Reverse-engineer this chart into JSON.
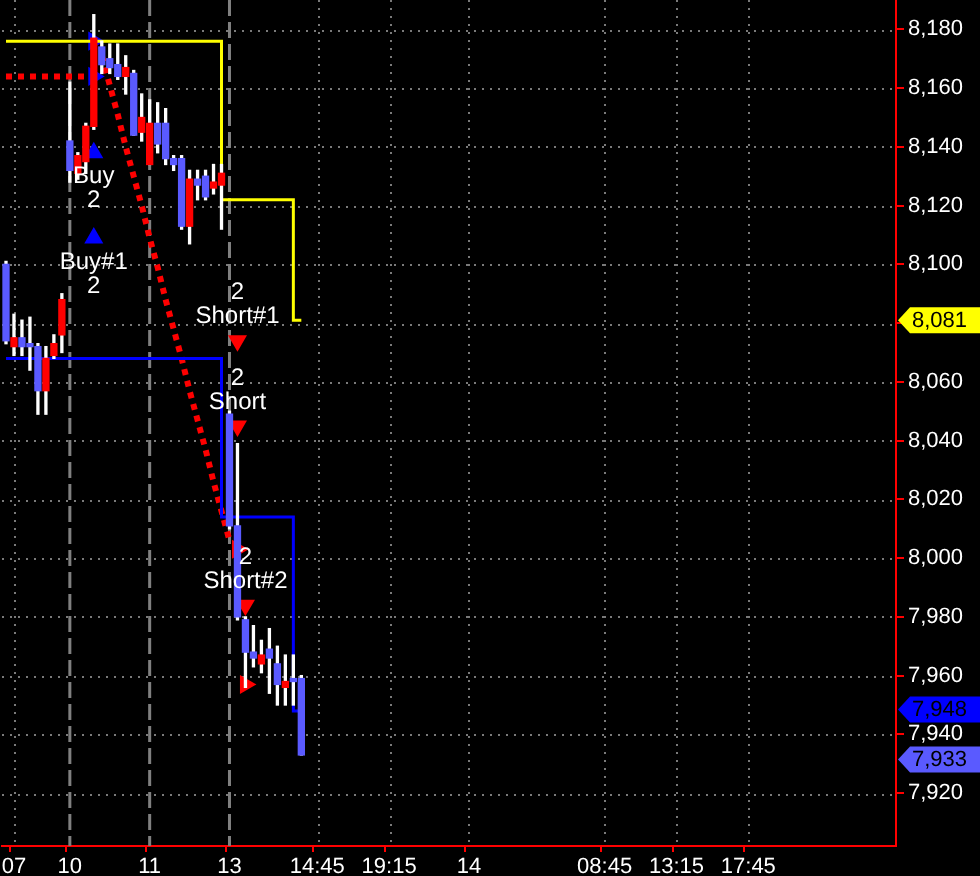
{
  "chart_data": {
    "type": "candlestick",
    "categories": [
      null,
      "07",
      null,
      null,
      null,
      null,
      null,
      null,
      "10",
      null,
      null,
      null,
      null,
      null,
      null,
      null,
      null,
      null,
      "11",
      null,
      null,
      null,
      null,
      null,
      null,
      null,
      null,
      null,
      "13",
      null,
      null,
      null,
      null,
      null,
      null,
      null,
      null,
      null,
      null,
      "14:45",
      null,
      null,
      null,
      null,
      null,
      null,
      null,
      null,
      "19:15",
      null,
      null,
      null,
      null,
      null,
      null,
      null,
      null,
      null,
      "14",
      null,
      null,
      null,
      null,
      null,
      null,
      null,
      null,
      null,
      null,
      null,
      null,
      null,
      null,
      null,
      null,
      "08:45",
      null,
      null,
      null,
      null,
      null,
      null,
      null,
      null,
      "13:15",
      null,
      null,
      null,
      null,
      null,
      null,
      null,
      null,
      "17:45",
      null,
      null,
      null,
      null,
      null,
      null,
      null,
      null,
      null,
      null,
      null,
      null,
      null,
      null,
      null,
      null,
      null,
      null
    ],
    "ohlc": [
      [
        8100,
        8101,
        8073,
        8074
      ],
      [
        8072,
        8083,
        8069,
        8075
      ],
      [
        8075,
        8081,
        8069,
        8072
      ],
      [
        8073,
        8082,
        8064,
        8072
      ],
      [
        8072,
        8073,
        8049,
        8057
      ],
      [
        8057,
        8072,
        8049,
        8068
      ],
      [
        8069,
        8076,
        8068,
        8073
      ],
      [
        8076,
        8090,
        8070,
        8088
      ],
      [
        8142,
        8162,
        8128,
        8132
      ],
      [
        8131,
        8138,
        8129,
        8137
      ],
      [
        8135,
        8148,
        8131,
        8147
      ],
      [
        8147,
        8185,
        8146,
        8177
      ],
      [
        8174,
        8176,
        8165,
        8168
      ],
      [
        8170,
        8175,
        8165,
        8167
      ],
      [
        8168,
        8175,
        8163,
        8164
      ],
      [
        8164,
        8171,
        8158,
        8167
      ],
      [
        8165,
        8166,
        8144,
        8144
      ],
      [
        8145,
        8158,
        8142,
        8150
      ],
      [
        8134,
        8156,
        8134,
        8148
      ],
      [
        8148,
        8155,
        8138,
        8141
      ],
      [
        8148,
        8153,
        8134,
        8136
      ],
      [
        8136,
        8137,
        8132,
        8134
      ],
      [
        8136,
        8137,
        8112,
        8113
      ],
      [
        8113,
        8132,
        8107,
        8129
      ],
      [
        8129,
        8132,
        8122,
        8127
      ],
      [
        8130,
        8132,
        8122,
        8123
      ],
      [
        8126,
        8134,
        8124,
        8128
      ],
      [
        8127,
        8134,
        8112,
        8131
      ],
      [
        8049,
        8050,
        8010,
        8011
      ],
      [
        8011,
        8039,
        7979,
        7980
      ],
      [
        7979,
        7980,
        7956,
        7968
      ],
      [
        7968,
        7977,
        7963,
        7966
      ],
      [
        7964,
        7972,
        7961,
        7967
      ],
      [
        7969,
        7976,
        7954,
        7966
      ],
      [
        7964,
        7970,
        7950,
        7957
      ],
      [
        7956,
        7967,
        7950,
        7958
      ],
      [
        7959,
        7967,
        7950,
        7958
      ],
      [
        7959,
        7960,
        7933,
        7933
      ],
      null,
      null,
      null,
      null,
      null,
      null,
      null,
      null,
      null,
      null,
      null,
      null,
      null,
      null,
      null,
      null,
      null,
      null,
      null,
      null,
      null,
      null,
      null,
      null,
      null,
      null,
      null,
      null,
      null,
      null,
      null,
      null,
      null,
      null,
      null,
      null,
      null,
      null,
      null,
      null,
      null,
      null,
      null,
      null,
      null,
      null,
      null,
      null,
      null,
      null,
      null,
      null,
      null,
      null,
      null,
      null,
      null,
      null,
      null,
      null,
      null,
      null,
      null,
      null,
      null,
      null,
      null,
      null,
      null,
      null,
      null,
      null,
      null,
      null
    ],
    "colors": [
      "#5a5aff",
      "#ff0000",
      "#5a5aff",
      "#5a5aff",
      "#5a5aff",
      "#ff0000",
      "#ff0000",
      "#ff0000",
      "#5a5aff",
      "#ff0000",
      "#ff0000",
      "#ff0000",
      "#5a5aff",
      "#5a5aff",
      "#5a5aff",
      "#ff0000",
      "#5a5aff",
      "#ff0000",
      "#ff0000",
      "#5a5aff",
      "#5a5aff",
      "#5a5aff",
      "#5a5aff",
      "#ff0000",
      "#5a5aff",
      "#5a5aff",
      "#ff0000",
      "#ff0000",
      "#5a5aff",
      "#5a5aff",
      "#5a5aff",
      "#5a5aff",
      "#ff0000",
      "#5a5aff",
      "#5a5aff",
      "#ff0000",
      "#5a5aff",
      "#5a5aff",
      null,
      null,
      null,
      null,
      null,
      null,
      null,
      null,
      null,
      null,
      null,
      null,
      null,
      null,
      null,
      null,
      null,
      null,
      null,
      null,
      null,
      null,
      null,
      null,
      null,
      null,
      null,
      null,
      null,
      null,
      null,
      null,
      null,
      null,
      null,
      null,
      null,
      null,
      null,
      null,
      null,
      null,
      null,
      null,
      null,
      null,
      null,
      null,
      null,
      null,
      null,
      null,
      null,
      null,
      null,
      null,
      null,
      null,
      null,
      null,
      null,
      null,
      null,
      null,
      null,
      null,
      null,
      null,
      null,
      null,
      null,
      null,
      null,
      null
    ],
    "series": [
      {
        "type": "step",
        "color": "#ffff00",
        "values": [
          8176,
          8176,
          8176,
          8176,
          8176,
          8176,
          8176,
          8176,
          8176,
          8176,
          8176,
          8176,
          8176,
          8176,
          8176,
          8176,
          8176,
          8176,
          8176,
          8176,
          8176,
          8176,
          8176,
          8176,
          8176,
          8176,
          8176,
          8176,
          8122,
          8122,
          8122,
          8122,
          8122,
          8122,
          8122,
          8122,
          8122,
          8081,
          null,
          null,
          null,
          null,
          null,
          null,
          null,
          null,
          null,
          null,
          null,
          null,
          null,
          null,
          null,
          null,
          null,
          null,
          null,
          null,
          null,
          null,
          null,
          null,
          null,
          null,
          null,
          null,
          null,
          null,
          null,
          null,
          null,
          null,
          null,
          null,
          null,
          null,
          null,
          null,
          null,
          null,
          null,
          null,
          null,
          null,
          null,
          null,
          null,
          null,
          null,
          null,
          null,
          null,
          null,
          null,
          null,
          null,
          null,
          null,
          null,
          null,
          null,
          null,
          null,
          null,
          null,
          null,
          null,
          null,
          null,
          null,
          null,
          null
        ]
      },
      {
        "type": "step",
        "color": "#0000ff",
        "values": [
          8068,
          8068,
          8068,
          8068,
          8068,
          8068,
          8068,
          8068,
          8068,
          8068,
          8068,
          8068,
          8068,
          8068,
          8068,
          8068,
          8068,
          8068,
          8068,
          8068,
          8068,
          8068,
          8068,
          8068,
          8068,
          8068,
          8068,
          8068,
          8014,
          8014,
          8014,
          8014,
          8014,
          8014,
          8014,
          8014,
          8014,
          7948,
          null,
          null,
          null,
          null,
          null,
          null,
          null,
          null,
          null,
          null,
          null,
          null,
          null,
          null,
          null,
          null,
          null,
          null,
          null,
          null,
          null,
          null,
          null,
          null,
          null,
          null,
          null,
          null,
          null,
          null,
          null,
          null,
          null,
          null,
          null,
          null,
          null,
          null,
          null,
          null,
          null,
          null,
          null,
          null,
          null,
          null,
          null,
          null,
          null,
          null,
          null,
          null,
          null,
          null,
          null,
          null,
          null,
          null,
          null,
          null,
          null,
          null,
          null,
          null,
          null,
          null,
          null,
          null,
          null,
          null,
          null,
          null,
          null,
          null
        ]
      },
      {
        "type": "line",
        "color": "#ff0000",
        "line_style": "dotted",
        "values": [
          8164,
          8164,
          8164,
          8164,
          8164,
          8164,
          8164,
          8164,
          8164,
          8164,
          8164,
          null,
          null,
          null,
          null,
          null,
          null,
          null,
          null,
          null,
          null,
          null,
          null,
          null,
          null,
          null,
          null,
          null,
          null,
          null,
          null,
          null,
          null,
          null,
          null,
          null,
          null,
          null,
          null,
          null,
          null,
          null,
          null,
          null,
          null,
          null,
          null,
          null,
          null,
          null,
          null,
          null,
          null,
          null,
          null,
          null,
          null,
          null,
          null,
          null,
          null,
          null,
          null,
          null,
          null,
          null,
          null,
          null,
          null,
          null,
          null,
          null,
          null,
          null,
          null,
          null,
          null,
          null,
          null,
          null,
          null,
          null,
          null,
          null,
          null,
          null,
          null,
          null,
          null,
          null,
          null,
          null,
          null,
          null,
          null,
          null,
          null,
          null,
          null,
          null,
          null,
          null,
          null,
          null,
          null,
          null,
          null,
          null,
          null,
          null,
          null,
          null
        ]
      },
      {
        "type": "line",
        "color": "#ff0000",
        "line_style": "dotted",
        "values": [
          null,
          null,
          null,
          null,
          null,
          null,
          null,
          null,
          null,
          null,
          null,
          null,
          8171,
          8161,
          8151,
          8140,
          8130,
          8120,
          8109,
          8099,
          8088,
          8078,
          8068,
          8057,
          8047,
          8037,
          8026,
          8016,
          8006,
          null,
          null,
          null,
          null,
          null,
          null,
          null,
          null,
          null,
          null,
          null,
          null,
          null,
          null,
          null,
          null,
          null,
          null,
          null,
          null,
          null,
          null,
          null,
          null,
          null,
          null,
          null,
          null,
          null,
          null,
          null,
          null,
          null,
          null,
          null,
          null,
          null,
          null,
          null,
          null,
          null,
          null,
          null,
          null,
          null,
          null,
          null,
          null,
          null,
          null,
          null,
          null,
          null,
          null,
          null,
          null,
          null,
          null,
          null,
          null,
          null,
          null,
          null,
          null,
          null,
          null,
          null,
          null,
          null,
          null,
          null,
          null,
          null,
          null,
          null,
          null,
          null,
          null,
          null,
          null,
          null,
          null,
          null
        ]
      },
      {
        "type": "scatter",
        "name": "Buy 2",
        "color": "#0000ff",
        "marker": "triangle",
        "values": [
          null,
          null,
          null,
          null,
          null,
          null,
          null,
          null,
          null,
          null,
          null,
          8138,
          null,
          null,
          null,
          null,
          null,
          null,
          null,
          null,
          null,
          null,
          null,
          null,
          null,
          null,
          null,
          null,
          null,
          null,
          null,
          null,
          null,
          null,
          null,
          null,
          null,
          null,
          null,
          null,
          null,
          null,
          null,
          null,
          null,
          null,
          null,
          null,
          null,
          null,
          null,
          null,
          null,
          null,
          null,
          null,
          null,
          null,
          null,
          null,
          null,
          null,
          null,
          null,
          null,
          null,
          null,
          null,
          null,
          null,
          null,
          null,
          null,
          null,
          null,
          null,
          null,
          null,
          null,
          null,
          null,
          null,
          null,
          null,
          null,
          null,
          null,
          null,
          null,
          null,
          null,
          null,
          null,
          null,
          null,
          null,
          null,
          null,
          null,
          null,
          null,
          null,
          null,
          null,
          null,
          null,
          null,
          null,
          null,
          null,
          null,
          null
        ]
      },
      {
        "type": "scatter",
        "name": "Buy#1 2",
        "color": "#0000ff",
        "marker": "triangle",
        "values": [
          null,
          null,
          null,
          null,
          null,
          null,
          null,
          null,
          null,
          null,
          null,
          8109,
          null,
          null,
          null,
          null,
          null,
          null,
          null,
          null,
          null,
          null,
          null,
          null,
          null,
          null,
          null,
          null,
          null,
          null,
          null,
          null,
          null,
          null,
          null,
          null,
          null,
          null,
          null,
          null,
          null,
          null,
          null,
          null,
          null,
          null,
          null,
          null,
          null,
          null,
          null,
          null,
          null,
          null,
          null,
          null,
          null,
          null,
          null,
          null,
          null,
          null,
          null,
          null,
          null,
          null,
          null,
          null,
          null,
          null,
          null,
          null,
          null,
          null,
          null,
          null,
          null,
          null,
          null,
          null,
          null,
          null,
          null,
          null,
          null,
          null,
          null,
          null,
          null,
          null,
          null,
          null,
          null,
          null,
          null,
          null,
          null,
          null,
          null,
          null,
          null,
          null,
          null,
          null,
          null,
          null,
          null,
          null,
          null,
          null,
          null,
          null
        ]
      },
      {
        "type": "scatter",
        "name": "2 Short#1",
        "color": "#ff0000",
        "marker": "triangle",
        "values": [
          null,
          null,
          null,
          null,
          null,
          null,
          null,
          null,
          null,
          null,
          null,
          null,
          null,
          null,
          null,
          null,
          null,
          null,
          null,
          null,
          null,
          null,
          null,
          null,
          null,
          null,
          null,
          null,
          null,
          8074,
          null,
          null,
          null,
          null,
          null,
          null,
          null,
          null,
          null,
          null,
          null,
          null,
          null,
          null,
          null,
          null,
          null,
          null,
          null,
          null,
          null,
          null,
          null,
          null,
          null,
          null,
          null,
          null,
          null,
          null,
          null,
          null,
          null,
          null,
          null,
          null,
          null,
          null,
          null,
          null,
          null,
          null,
          null,
          null,
          null,
          null,
          null,
          null,
          null,
          null,
          null,
          null,
          null,
          null,
          null,
          null,
          null,
          null,
          null,
          null,
          null,
          null,
          null,
          null,
          null,
          null,
          null,
          null,
          null,
          null,
          null,
          null,
          null,
          null,
          null,
          null,
          null,
          null,
          null,
          null,
          null,
          null
        ]
      },
      {
        "type": "scatter",
        "name": "2 Short",
        "color": "#ff0000",
        "marker": "triangle",
        "values": [
          null,
          null,
          null,
          null,
          null,
          null,
          null,
          null,
          null,
          null,
          null,
          null,
          null,
          null,
          null,
          null,
          null,
          null,
          null,
          null,
          null,
          null,
          null,
          null,
          null,
          null,
          null,
          null,
          null,
          8045,
          null,
          null,
          null,
          null,
          null,
          null,
          null,
          null,
          null,
          null,
          null,
          null,
          null,
          null,
          null,
          null,
          null,
          null,
          null,
          null,
          null,
          null,
          null,
          null,
          null,
          null,
          null,
          null,
          null,
          null,
          null,
          null,
          null,
          null,
          null,
          null,
          null,
          null,
          null,
          null,
          null,
          null,
          null,
          null,
          null,
          null,
          null,
          null,
          null,
          null,
          null,
          null,
          null,
          null,
          null,
          null,
          null,
          null,
          null,
          null,
          null,
          null,
          null,
          null,
          null,
          null,
          null,
          null,
          null,
          null,
          null,
          null,
          null,
          null,
          null,
          null,
          null,
          null,
          null,
          null,
          null,
          null
        ]
      },
      {
        "type": "scatter",
        "name": "2 Short#2",
        "color": "#ff0000",
        "marker": "triangle",
        "values": [
          null,
          null,
          null,
          null,
          null,
          null,
          null,
          null,
          null,
          null,
          null,
          null,
          null,
          null,
          null,
          null,
          null,
          null,
          null,
          null,
          null,
          null,
          null,
          null,
          null,
          null,
          null,
          null,
          null,
          null,
          7984,
          null,
          null,
          null,
          null,
          null,
          null,
          null,
          null,
          null,
          null,
          null,
          null,
          null,
          null,
          null,
          null,
          null,
          null,
          null,
          null,
          null,
          null,
          null,
          null,
          null,
          null,
          null,
          null,
          null,
          null,
          null,
          null,
          null,
          null,
          null,
          null,
          null,
          null,
          null,
          null,
          null,
          null,
          null,
          null,
          null,
          null,
          null,
          null,
          null,
          null,
          null,
          null,
          null,
          null,
          null,
          null,
          null,
          null,
          null,
          null,
          null,
          null,
          null,
          null,
          null,
          null,
          null,
          null,
          null,
          null,
          null,
          null,
          null,
          null,
          null,
          null,
          null,
          null,
          null,
          null,
          null
        ]
      },
      {
        "type": "scatter",
        "color": "#0000ff",
        "marker": "triangle",
        "values": [
          null,
          null,
          null,
          null,
          null,
          null,
          null,
          null,
          null,
          null,
          null,
          8176,
          null,
          null,
          null,
          null,
          null,
          null,
          null,
          null,
          null,
          null,
          null,
          null,
          null,
          null,
          null,
          null,
          null,
          null,
          null,
          null,
          null,
          null,
          null,
          null,
          null,
          null,
          null,
          null,
          null,
          null,
          null,
          null,
          null,
          null,
          null,
          null,
          null,
          null,
          null,
          null,
          null,
          null,
          null,
          null,
          null,
          null,
          null,
          null,
          null,
          null,
          null,
          null,
          null,
          null,
          null,
          null,
          null,
          null,
          null,
          null,
          null,
          null,
          null,
          null,
          null,
          null,
          null,
          null,
          null,
          null,
          null,
          null,
          null,
          null,
          null,
          null,
          null,
          null,
          null,
          null,
          null,
          null,
          null,
          null,
          null,
          null,
          null,
          null,
          null,
          null,
          null,
          null,
          null,
          null,
          null,
          null,
          null,
          null,
          null,
          null
        ]
      },
      {
        "type": "scatter",
        "color": "#0000ff",
        "marker": "triangle",
        "values": [
          null,
          null,
          null,
          null,
          null,
          null,
          null,
          null,
          null,
          null,
          null,
          8164,
          null,
          null,
          null,
          null,
          null,
          null,
          null,
          null,
          null,
          null,
          null,
          null,
          null,
          null,
          null,
          null,
          null,
          null,
          null,
          null,
          null,
          null,
          null,
          null,
          null,
          null,
          null,
          null,
          null,
          null,
          null,
          null,
          null,
          null,
          null,
          null,
          null,
          null,
          null,
          null,
          null,
          null,
          null,
          null,
          null,
          null,
          null,
          null,
          null,
          null,
          null,
          null,
          null,
          null,
          null,
          null,
          null,
          null,
          null,
          null,
          null,
          null,
          null,
          null,
          null,
          null,
          null,
          null,
          null,
          null,
          null,
          null,
          null,
          null,
          null,
          null,
          null,
          null,
          null,
          null,
          null,
          null,
          null,
          null,
          null,
          null,
          null,
          null,
          null,
          null,
          null,
          null,
          null,
          null,
          null,
          null,
          null,
          null,
          null,
          null
        ]
      },
      {
        "type": "scatter",
        "color": "#ff0000",
        "marker": "triangle",
        "values": [
          null,
          null,
          null,
          null,
          null,
          null,
          null,
          null,
          null,
          null,
          null,
          null,
          null,
          null,
          null,
          null,
          null,
          null,
          null,
          null,
          null,
          null,
          null,
          null,
          null,
          null,
          null,
          null,
          null,
          8003,
          7957,
          null,
          null,
          null,
          null,
          null,
          null,
          null,
          null,
          null,
          null,
          null,
          null,
          null,
          null,
          null,
          null,
          null,
          null,
          null,
          null,
          null,
          null,
          null,
          null,
          null,
          null,
          null,
          null,
          null,
          null,
          null,
          null,
          null,
          null,
          null,
          null,
          null,
          null,
          null,
          null,
          null,
          null,
          null,
          null,
          null,
          null,
          null,
          null,
          null,
          null,
          null,
          null,
          null,
          null,
          null,
          null,
          null,
          null,
          null,
          null,
          null,
          null,
          null,
          null,
          null,
          null,
          null,
          null,
          null,
          null,
          null,
          null,
          null,
          null,
          null,
          null,
          null,
          null,
          null,
          null,
          null
        ]
      }
    ],
    "annotations": [
      {
        "text": "8,081",
        "y": 8081
      },
      {
        "text": "7,948",
        "y": 7948
      },
      {
        "text": "7,933",
        "y": 7933
      }
    ],
    "ylim": [
      7902,
      8190
    ],
    "yticks": [
      {
        "value": 7920,
        "label": "7,920"
      },
      {
        "value": 7940,
        "label": "7,940"
      },
      {
        "value": 7960,
        "label": "7,960"
      },
      {
        "value": 7980,
        "label": "7,980"
      },
      {
        "value": 8000,
        "label": "8,000"
      },
      {
        "value": 8020,
        "label": "8,020"
      },
      {
        "value": 8040,
        "label": "8,040"
      },
      {
        "value": 8060,
        "label": "8,060"
      },
      {
        "value": 8080,
        "label": null
      },
      {
        "value": 8100,
        "label": "8,100"
      },
      {
        "value": 8120,
        "label": "8,120"
      },
      {
        "value": 8140,
        "label": "8,140"
      },
      {
        "value": 8160,
        "label": "8,160"
      },
      {
        "value": 8180,
        "label": "8,180"
      }
    ],
    "grid": true,
    "ref_lines": [
      {
        "axis": "x",
        "value": "10",
        "color": "#808080",
        "line_style": "dashed"
      },
      {
        "axis": "x",
        "value": "11",
        "color": "#808080",
        "line_style": "dashed"
      },
      {
        "axis": "x",
        "value": "13",
        "color": "#808080",
        "line_style": "dashed"
      }
    ]
  }
}
